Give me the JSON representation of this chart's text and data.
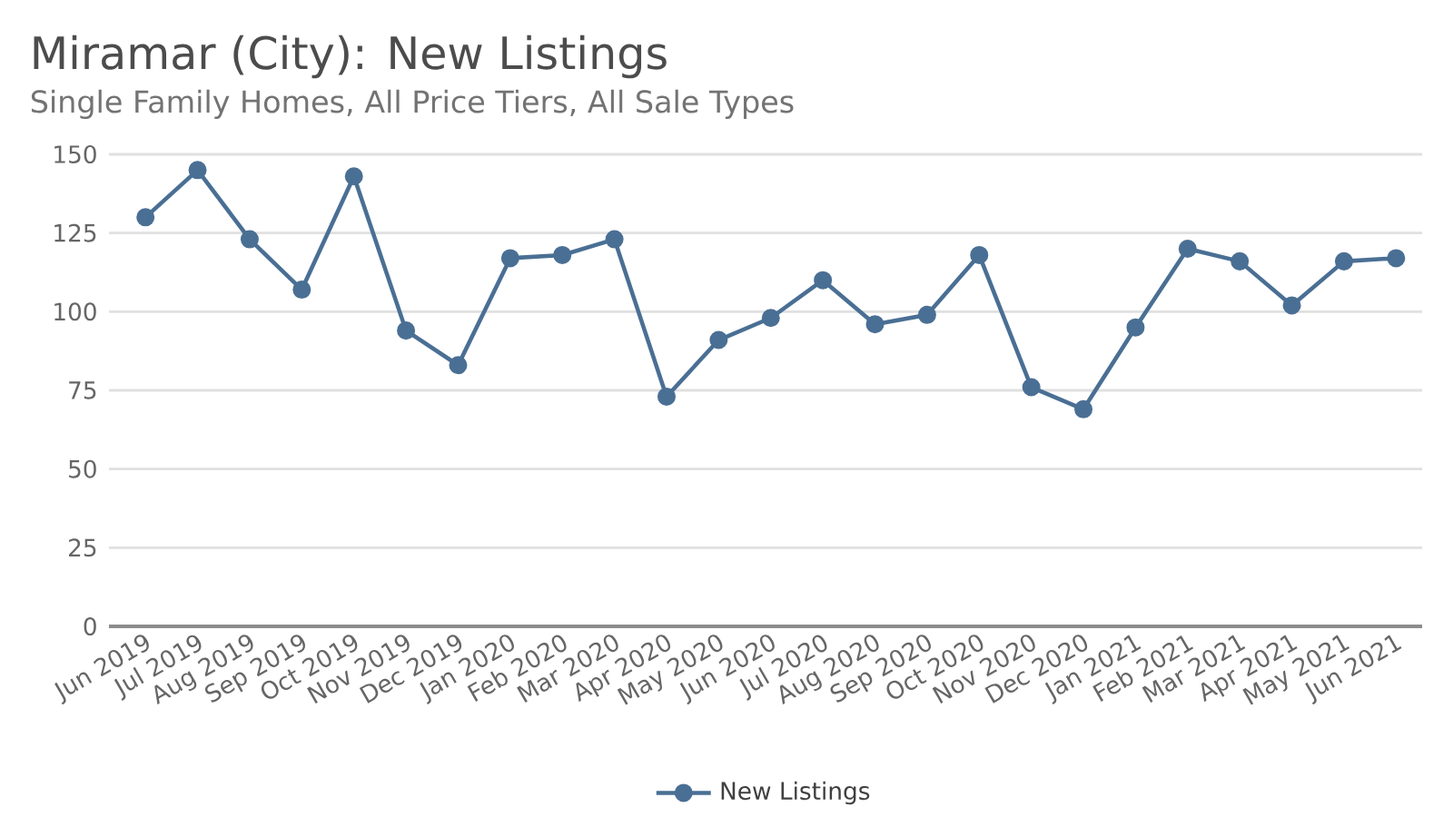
{
  "chart_data": {
    "type": "line",
    "title": "Miramar (City): New Listings",
    "subtitle": "Single Family Homes, All Price Tiers, All Sale Types",
    "categories": [
      "Jun 2019",
      "Jul 2019",
      "Aug 2019",
      "Sep 2019",
      "Oct 2019",
      "Nov 2019",
      "Dec 2019",
      "Jan 2020",
      "Feb 2020",
      "Mar 2020",
      "Apr 2020",
      "May 2020",
      "Jun 2020",
      "Jul 2020",
      "Aug 2020",
      "Sep 2020",
      "Oct 2020",
      "Nov 2020",
      "Dec 2020",
      "Jan 2021",
      "Feb 2021",
      "Mar 2021",
      "Apr 2021",
      "May 2021",
      "Jun 2021"
    ],
    "series": [
      {
        "name": "New Listings",
        "color": "#4a6f94",
        "values": [
          130,
          145,
          123,
          107,
          143,
          94,
          83,
          117,
          118,
          123,
          73,
          91,
          98,
          110,
          96,
          99,
          118,
          76,
          69,
          95,
          120,
          116,
          102,
          116,
          117
        ]
      }
    ],
    "ylim": [
      0,
      150
    ],
    "yticks": [
      0,
      25,
      50,
      75,
      100,
      125,
      150
    ],
    "grid": "y",
    "legend": "bottom",
    "marker": "circle",
    "line_style": "solid"
  }
}
